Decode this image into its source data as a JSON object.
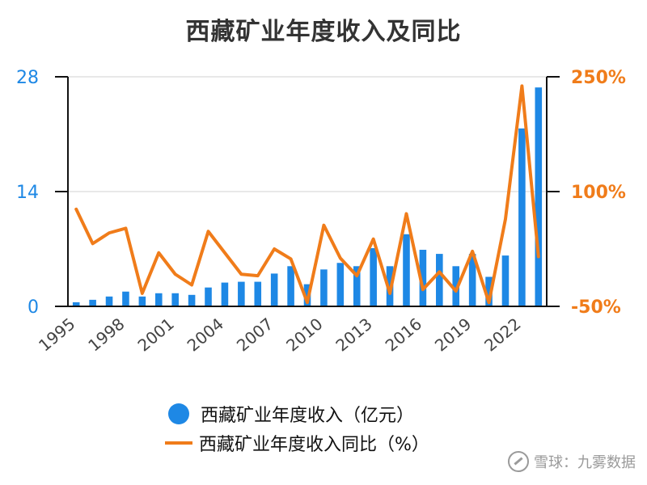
{
  "chart_data": {
    "type": "bar",
    "title": "西藏矿业年度收入及同比",
    "categories": [
      "1995",
      "1996",
      "1997",
      "1998",
      "1999",
      "2000",
      "2001",
      "2002",
      "2003",
      "2004",
      "2005",
      "2006",
      "2007",
      "2008",
      "2009",
      "2010",
      "2011",
      "2012",
      "2013",
      "2014",
      "2015",
      "2016",
      "2017",
      "2018",
      "2019",
      "2020",
      "2021",
      "2022",
      "2023"
    ],
    "x_tick_labels": [
      "1995",
      "1998",
      "2001",
      "2004",
      "2007",
      "2010",
      "2013",
      "2016",
      "2019",
      "2022"
    ],
    "series": [
      {
        "name": "西藏矿业年度收入（亿元）",
        "type": "bar",
        "axis": "left",
        "color": "#1e88e5",
        "values": [
          0.5,
          0.8,
          1.2,
          1.8,
          1.2,
          1.6,
          1.6,
          1.4,
          2.3,
          2.9,
          3.0,
          3.0,
          4.0,
          4.9,
          2.7,
          4.5,
          5.3,
          4.9,
          7.1,
          4.9,
          8.8,
          6.9,
          6.4,
          4.9,
          6.4,
          3.6,
          6.2,
          21.7,
          26.7
        ]
      },
      {
        "name": "西藏矿业年度收入同比（%）",
        "type": "line",
        "axis": "right",
        "color": "#f07c1a",
        "values": [
          77,
          32,
          46,
          52,
          -33,
          20,
          -8,
          -22,
          48,
          20,
          -8,
          -10,
          25,
          12,
          -45,
          56,
          13,
          -10,
          38,
          -33,
          71,
          -28,
          -5,
          -30,
          22,
          -45,
          64,
          238,
          15
        ]
      }
    ],
    "y_left": {
      "ylim": [
        0,
        28
      ],
      "ticks": [
        "0",
        "14",
        "28"
      ]
    },
    "y_right": {
      "ylim": [
        -50,
        250
      ],
      "ticks": [
        "-50%",
        "100%",
        "250%"
      ]
    },
    "grid": true,
    "legend_position": "bottom"
  },
  "watermark": "雪球：九雾数据",
  "colors": {
    "bar": "#1e88e5",
    "line": "#f07c1a",
    "grid": "#e0e0e0",
    "axis": "#111111"
  }
}
